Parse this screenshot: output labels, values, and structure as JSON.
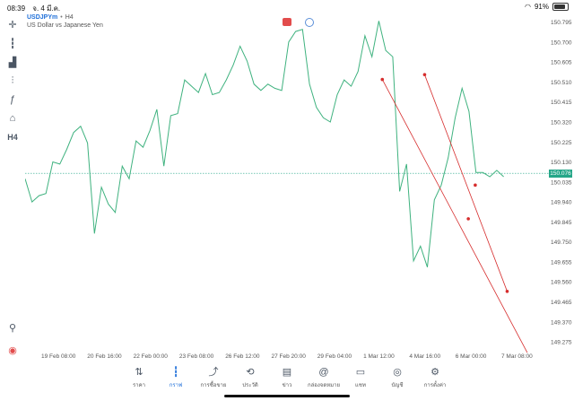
{
  "status_bar": {
    "time": "08:39",
    "date": "จ. 4 มี.ค.",
    "battery": "91%"
  },
  "symbol": {
    "name": "USDJPYm",
    "separator": "•",
    "timeframe": "H4",
    "description": "US Dollar vs Japanese Yen"
  },
  "toolbar": {
    "items": [
      {
        "name": "crosshair-icon",
        "glyph": "✛"
      },
      {
        "name": "candles-icon",
        "glyph": "┇"
      },
      {
        "name": "bar-chart-icon",
        "glyph": "▟"
      },
      {
        "name": "indicators-icon",
        "glyph": "⫶"
      },
      {
        "name": "function-icon",
        "glyph": "ƒ"
      },
      {
        "name": "shapes-icon",
        "glyph": "⌂"
      }
    ],
    "timeframe_label": "H4",
    "bottom_items": [
      {
        "name": "search-zoom-icon",
        "glyph": "⚲"
      },
      {
        "name": "app-logo-icon",
        "glyph": "◉"
      }
    ]
  },
  "current_price": "150.076",
  "chart_data": {
    "type": "line",
    "xlabels": [
      "19 Feb 08:00",
      "20 Feb 16:00",
      "22 Feb 00:00",
      "23 Feb 08:00",
      "26 Feb 12:00",
      "27 Feb 20:00",
      "29 Feb 04:00",
      "1 Mar 12:00",
      "4 Mar 16:00",
      "6 Mar 00:00",
      "7 Mar 08:00"
    ],
    "yticks": [
      "150.795",
      "150.700",
      "150.605",
      "150.510",
      "150.415",
      "150.320",
      "150.225",
      "150.130",
      "150.035",
      "149.940",
      "149.845",
      "149.750",
      "149.655",
      "149.560",
      "149.465",
      "149.370",
      "149.275"
    ],
    "ylim": [
      149.22,
      150.84
    ],
    "series": [
      {
        "color": "#3fb27f",
        "values": [
          150.05,
          149.94,
          149.97,
          149.98,
          150.13,
          150.12,
          150.19,
          150.27,
          150.3,
          150.22,
          149.79,
          150.01,
          149.93,
          149.89,
          150.11,
          150.05,
          150.23,
          150.2,
          150.28,
          150.38,
          150.11,
          150.35,
          150.36,
          150.52,
          150.49,
          150.46,
          150.55,
          150.45,
          150.46,
          150.52,
          150.59,
          150.68,
          150.61,
          150.5,
          150.47,
          150.5,
          150.48,
          150.47,
          150.7,
          150.75,
          150.76,
          150.5,
          150.39,
          150.34,
          150.32,
          150.45,
          150.52,
          150.49,
          150.56,
          150.73,
          150.63,
          150.8,
          150.66,
          150.63,
          149.99,
          150.12,
          149.66,
          149.73,
          149.63,
          149.95,
          150.02,
          150.15,
          150.34,
          150.48,
          150.37,
          150.08,
          150.08,
          150.06,
          150.09,
          150.06
        ]
      }
    ],
    "trendlines": [
      {
        "color": "#d62d2d",
        "x1": 51.5,
        "y1": 150.522,
        "x2": 72.4,
        "y2": 149.224
      },
      {
        "color": "#d62d2d",
        "x1": 57.6,
        "y1": 150.545,
        "x2": 69.5,
        "y2": 149.515
      }
    ],
    "anchor_points": [
      {
        "x": 51.5,
        "y": 150.522
      },
      {
        "x": 57.6,
        "y": 150.545
      },
      {
        "x": 63.9,
        "y": 149.86
      },
      {
        "x": 64.9,
        "y": 150.02
      },
      {
        "x": 69.5,
        "y": 149.515
      }
    ],
    "current_price_line": 150.076,
    "grid": false
  },
  "bottom_nav": {
    "items": [
      {
        "label": "ราคา",
        "icon": "⇅",
        "name": "nav-quotes"
      },
      {
        "label": "กราฟ",
        "icon": "┇",
        "name": "nav-chart",
        "active": true
      },
      {
        "label": "การซื้อขาย",
        "icon": "⤴",
        "name": "nav-trade"
      },
      {
        "label": "ประวัติ",
        "icon": "⟲",
        "name": "nav-history"
      },
      {
        "label": "ข่าว",
        "icon": "▤",
        "name": "nav-news"
      },
      {
        "label": "กล่องจดหมาย",
        "icon": "@",
        "name": "nav-mailbox"
      },
      {
        "label": "แชท",
        "icon": "▭",
        "name": "nav-chat"
      },
      {
        "label": "บัญชี",
        "icon": "◎",
        "name": "nav-account"
      },
      {
        "label": "การตั้งค่า",
        "icon": "⚙",
        "name": "nav-settings"
      }
    ]
  }
}
